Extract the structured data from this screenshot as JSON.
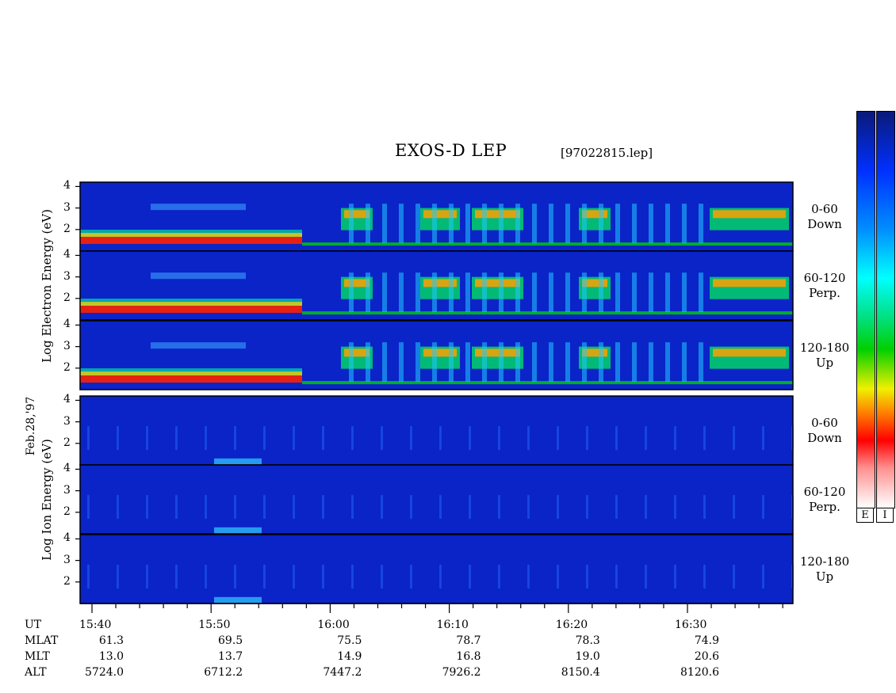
{
  "title": "EXOS-D LEP",
  "file_label": "[97022815.lep]",
  "date_label": "Feb.28,'97",
  "electron_axis_label": "Log  Electron  Energy  (eV)",
  "ion_axis_label": "Log  Ion  Energy  (eV)",
  "panels": [
    {
      "group": "electron",
      "pitch_range": "0-60",
      "direction": "Down"
    },
    {
      "group": "electron",
      "pitch_range": "60-120",
      "direction": "Perp."
    },
    {
      "group": "electron",
      "pitch_range": "120-180",
      "direction": "Up"
    },
    {
      "group": "ion",
      "pitch_range": "0-60",
      "direction": "Down"
    },
    {
      "group": "ion",
      "pitch_range": "60-120",
      "direction": "Perp."
    },
    {
      "group": "ion",
      "pitch_range": "120-180",
      "direction": "Up"
    }
  ],
  "y_ticks": [
    "2",
    "3",
    "4"
  ],
  "colorbar_labels": [
    "E",
    "I"
  ],
  "chart_data": {
    "type": "heatmap",
    "title": "EXOS-D LEP",
    "x_tick_labels": [
      "15:40",
      "15:50",
      "16:00",
      "16:10",
      "16:20",
      "16:30"
    ],
    "ylim": [
      1,
      4.2
    ],
    "ephemeris": {
      "rows": [
        "UT",
        "MLAT",
        "MLT",
        "ALT"
      ],
      "UT": [
        "15:40",
        "15:50",
        "16:00",
        "16:10",
        "16:20",
        "16:30"
      ],
      "MLAT": [
        "61.3",
        "69.5",
        "75.5",
        "78.7",
        "78.3",
        "74.9"
      ],
      "MLT": [
        "13.0",
        "13.7",
        "14.9",
        "16.8",
        "19.0",
        "20.6"
      ],
      "ALT": [
        "5724.0",
        "6712.2",
        "7447.2",
        "7926.2",
        "8150.4",
        "8120.6"
      ]
    }
  }
}
